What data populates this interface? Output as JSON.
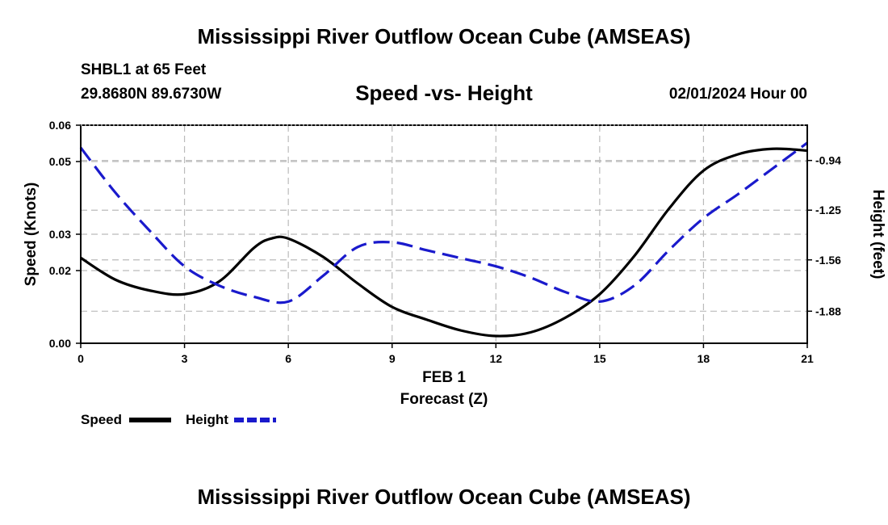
{
  "header": {
    "title": "Mississippi River Outflow Ocean Cube (AMSEAS)",
    "station": "SHBL1 at 65 Feet",
    "coords": "29.8680N  89.6730W",
    "subtitle": "Speed -vs- Height",
    "datetime": "02/01/2024 Hour 00"
  },
  "footer": {
    "title": "Mississippi River Outflow Ocean Cube (AMSEAS)"
  },
  "chart_data": {
    "type": "line",
    "title": "Speed -vs- Height",
    "xlabel": "Forecast (Z)",
    "xlabel_date": "FEB 1",
    "ylabel": "Speed (Knots)",
    "y2label": "Height (feet)",
    "xlim": [
      0,
      21
    ],
    "ylim": [
      0,
      0.06
    ],
    "y2lim": [
      -2.08,
      -0.72
    ],
    "xticks": [
      0,
      3,
      6,
      9,
      12,
      15,
      18,
      21
    ],
    "xtick_labels": [
      "0",
      "3",
      "6",
      "9",
      "12",
      "15",
      "18",
      "21"
    ],
    "yticks": [
      0,
      0.02,
      0.03,
      0.05,
      0.06
    ],
    "ytick_labels": [
      "0.00",
      "0.02",
      "0.03",
      "0.05",
      "0.06"
    ],
    "y2ticks": [
      -0.94,
      -1.25,
      -1.56,
      -1.88
    ],
    "y2tick_labels": [
      "-0.94",
      "-1.25",
      "-1.56",
      "-1.88"
    ],
    "grid": true,
    "legend_position": "bottom-left",
    "series": [
      {
        "name": "Speed",
        "axis": "left",
        "color": "#000000",
        "dash": "solid",
        "x": [
          0,
          1,
          2,
          3,
          4,
          5,
          5.5,
          6,
          7,
          8,
          9,
          10,
          11,
          12,
          13,
          14,
          15,
          16,
          17,
          18,
          19,
          20,
          21
        ],
        "values": [
          0.0235,
          0.0175,
          0.0145,
          0.0135,
          0.017,
          0.0262,
          0.0288,
          0.0288,
          0.0238,
          0.0165,
          0.01,
          0.0065,
          0.0035,
          0.002,
          0.003,
          0.007,
          0.0135,
          0.024,
          0.037,
          0.0475,
          0.052,
          0.0535,
          0.053
        ]
      },
      {
        "name": "Height",
        "axis": "right",
        "color": "#1a1acc",
        "dash": "dashed",
        "x": [
          0,
          1,
          2,
          3,
          4,
          5,
          6,
          7,
          8,
          9,
          10,
          11,
          12,
          13,
          14,
          15,
          16,
          17,
          18,
          19,
          20,
          21
        ],
        "values": [
          -0.86,
          -1.14,
          -1.38,
          -1.6,
          -1.72,
          -1.79,
          -1.82,
          -1.66,
          -1.48,
          -1.45,
          -1.5,
          -1.55,
          -1.6,
          -1.67,
          -1.76,
          -1.82,
          -1.72,
          -1.5,
          -1.3,
          -1.15,
          -0.99,
          -0.83
        ]
      }
    ]
  }
}
